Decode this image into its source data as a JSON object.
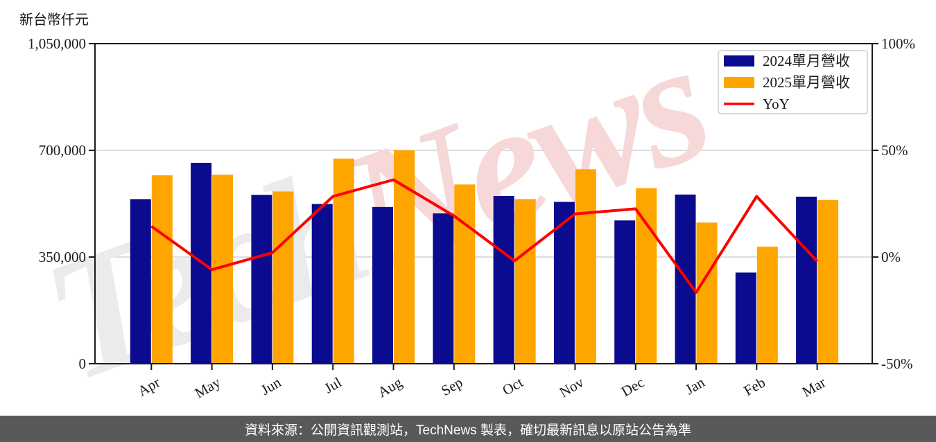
{
  "page": {
    "axis_unit_title": "新台幣仟元",
    "footer_text": "資料來源：公開資訊觀測站，TechNews 製表，確切最新訊息以原站公告為準"
  },
  "watermark": {
    "part1": "Tech",
    "part2": "News",
    "part1_color": "#ebebeb",
    "part2_color": "#f6d8d8"
  },
  "chart_data": {
    "type": "bar+line",
    "categories": [
      "Apr",
      "May",
      "Jun",
      "Jul",
      "Aug",
      "Sep",
      "Oct",
      "Nov",
      "Dec",
      "Jan",
      "Feb",
      "Mar"
    ],
    "series": [
      {
        "name": "2024單月營收",
        "type": "bar",
        "axis": "left",
        "color": "#0b0b8f",
        "values": [
          540000,
          659000,
          554000,
          524000,
          514000,
          493000,
          550000,
          531000,
          470000,
          555000,
          299000,
          548000
        ]
      },
      {
        "name": "2025單月營收",
        "type": "bar",
        "axis": "left",
        "color": "#ffa500",
        "values": [
          618000,
          620000,
          565000,
          673000,
          700000,
          588000,
          540000,
          638000,
          576000,
          463000,
          384000,
          537000
        ]
      },
      {
        "name": "YoY",
        "type": "line",
        "axis": "right",
        "color": "#ff0000",
        "unit": "%",
        "values": [
          14.4,
          -5.9,
          2.0,
          28.4,
          36.2,
          19.3,
          -1.8,
          20.2,
          22.6,
          -16.6,
          28.4,
          -2.0
        ]
      }
    ],
    "left_axis": {
      "title": "新台幣仟元",
      "min": 0,
      "max": 1050000,
      "tick_values": [
        0,
        350000,
        700000,
        1050000
      ],
      "tick_labels_top_to_bottom": [
        "1,050,000",
        "700,000",
        "350,000",
        "0"
      ]
    },
    "right_axis": {
      "min": -50,
      "max": 100,
      "tick_values": [
        -50,
        0,
        50,
        100
      ],
      "tick_labels_top_to_bottom": [
        "100%",
        "50%",
        "0%",
        "-50%"
      ]
    },
    "grid": true,
    "legend_position": "top-right",
    "legend": [
      {
        "label": "2024單月營收",
        "marker": "rect",
        "color": "#0b0b8f"
      },
      {
        "label": "2025單月營收",
        "marker": "rect",
        "color": "#ffa500"
      },
      {
        "label": "YoY",
        "marker": "line",
        "color": "#ff0000"
      }
    ]
  }
}
